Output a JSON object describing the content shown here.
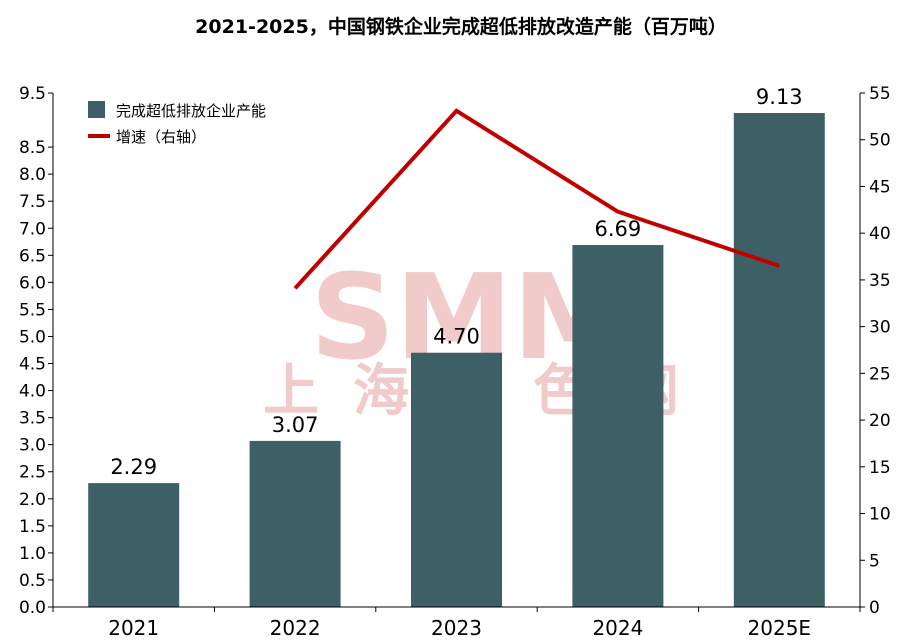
{
  "chart_data": {
    "type": "bar",
    "title": "2021-2025，中国钢铁企业完成超低排放改造产能（百万吨）",
    "categories": [
      "2021",
      "2022",
      "2023",
      "2024",
      "2025E"
    ],
    "series": [
      {
        "name": "完成超低排放企业产能",
        "type": "bar",
        "axis": "left",
        "values": [
          2.29,
          3.07,
          4.7,
          6.69,
          9.13
        ],
        "labels": [
          "2.29",
          "3.07",
          "4.70",
          "6.69",
          "9.13"
        ],
        "color": "#3d6066"
      },
      {
        "name": "增速（右轴）",
        "type": "line",
        "axis": "right",
        "values": [
          null,
          34.1,
          53.1,
          42.3,
          36.5
        ],
        "color": "#c00000"
      }
    ],
    "y_left": {
      "range": [
        0,
        9.5
      ],
      "ticks": [
        "0.0",
        "0.5",
        "1.0",
        "1.5",
        "2.0",
        "2.5",
        "3.0",
        "3.5",
        "4.0",
        "4.5",
        "5.0",
        "5.5",
        "6.0",
        "6.5",
        "7.0",
        "7.5",
        "8.0",
        "8.5",
        "9.5"
      ],
      "tick_values": [
        0,
        0.5,
        1,
        1.5,
        2,
        2.5,
        3,
        3.5,
        4,
        4.5,
        5,
        5.5,
        6,
        6.5,
        7,
        7.5,
        8,
        8.5,
        9.5
      ]
    },
    "y_right": {
      "range": [
        0,
        55
      ],
      "ticks": [
        "0",
        "5",
        "10",
        "15",
        "20",
        "25",
        "30",
        "35",
        "40",
        "45",
        "50",
        "55"
      ],
      "tick_values": [
        0,
        5,
        10,
        15,
        20,
        25,
        30,
        35,
        40,
        45,
        50,
        55
      ]
    },
    "grid": false,
    "legend_position": "top-left"
  },
  "watermark": {
    "main": "SMM",
    "sub": "上海有色网",
    "color": "#e8a8a8"
  }
}
